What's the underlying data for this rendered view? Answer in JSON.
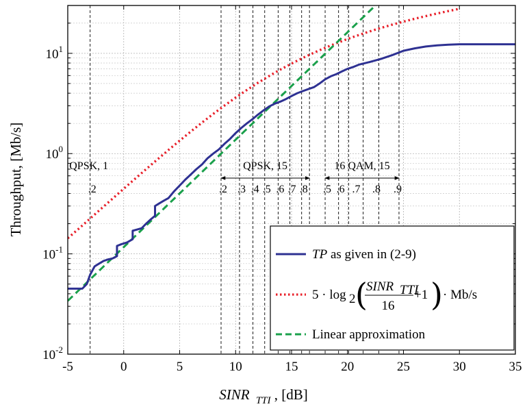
{
  "chart_data": {
    "type": "line",
    "xlabel": "SINR",
    "xlabel_sub": "TTI",
    "xlabel_unit": ", [dB]",
    "ylabel": "Throughput, [Mb/s]",
    "xlim": [
      -5,
      35
    ],
    "ylim": [
      0.01,
      30
    ],
    "y_scale": "log",
    "grid": true,
    "x_ticks": [
      -5,
      0,
      5,
      10,
      15,
      20,
      25,
      30,
      35
    ],
    "x_tick_labels": [
      "-5",
      "0",
      "5",
      "10",
      "15",
      "20",
      "25",
      "30",
      "35"
    ],
    "y_ticks": [
      {
        "value": 0.01,
        "base": "10",
        "exp": "-2"
      },
      {
        "value": 0.1,
        "base": "10",
        "exp": "-1"
      },
      {
        "value": 1,
        "base": "10",
        "exp": "0"
      },
      {
        "value": 10,
        "base": "10",
        "exp": "1"
      }
    ],
    "series": [
      {
        "name": "TP as given in  (2-9)",
        "name_italic": "TP",
        "name_rest": " as given in  (2-9)",
        "color": "#2e3192",
        "style": "solid",
        "x": [
          -5,
          -3.7,
          -3.3,
          -3.0,
          -2.6,
          -2.2,
          -1.8,
          -1.4,
          -1.0,
          -0.6,
          -0.6,
          -0.2,
          0.3,
          0.8,
          0.8,
          1.2,
          1.6,
          2.0,
          2.4,
          2.8,
          2.8,
          3.2,
          3.6,
          4.0,
          4.5,
          5.0,
          5.5,
          6.0,
          6.5,
          7.0,
          7.5,
          8.0,
          8.5,
          9.0,
          9.5,
          10.0,
          10.5,
          11.0,
          11.5,
          12.0,
          12.5,
          13.0,
          13.5,
          14.0,
          14.5,
          15.0,
          15.5,
          16.0,
          16.5,
          17.0,
          17.5,
          18.0,
          18.5,
          19.0,
          19.5,
          20.0,
          20.5,
          21.0,
          22.0,
          23.0,
          24.0,
          25.0,
          26.0,
          27.0,
          28.0,
          29.0,
          30.0,
          32.0,
          35.0
        ],
        "y": [
          0.045,
          0.045,
          0.05,
          0.062,
          0.075,
          0.08,
          0.085,
          0.088,
          0.09,
          0.095,
          0.12,
          0.125,
          0.13,
          0.14,
          0.17,
          0.175,
          0.18,
          0.2,
          0.22,
          0.24,
          0.3,
          0.32,
          0.34,
          0.36,
          0.42,
          0.48,
          0.55,
          0.62,
          0.7,
          0.78,
          0.9,
          1.0,
          1.1,
          1.25,
          1.4,
          1.6,
          1.8,
          2.0,
          2.2,
          2.45,
          2.7,
          2.95,
          3.15,
          3.3,
          3.5,
          3.75,
          4.0,
          4.2,
          4.4,
          4.6,
          5.0,
          5.5,
          5.9,
          6.2,
          6.6,
          7.0,
          7.3,
          7.7,
          8.2,
          8.8,
          9.6,
          10.6,
          11.2,
          11.7,
          12.0,
          12.2,
          12.3,
          12.3,
          12.3
        ]
      },
      {
        "name": "5·log2(SINR_TTI/16+1)·Mb/s",
        "color": "#e8202a",
        "style": "dotted",
        "x": [
          -5,
          -4,
          -3,
          -2,
          -1,
          0,
          1,
          2,
          3,
          4,
          5,
          6,
          7,
          8,
          9,
          10,
          11,
          12,
          13,
          14,
          15,
          16,
          17,
          18,
          19,
          20,
          21,
          22,
          23,
          24,
          25,
          26,
          27,
          28,
          29,
          30
        ],
        "y": [
          0.143,
          0.179,
          0.225,
          0.283,
          0.355,
          0.446,
          0.559,
          0.699,
          0.872,
          1.086,
          1.346,
          1.661,
          2.039,
          2.486,
          3.01,
          3.615,
          4.306,
          5.083,
          5.944,
          6.886,
          7.904,
          8.993,
          10.14,
          11.35,
          12.6,
          13.89,
          15.21,
          16.56,
          17.93,
          19.31,
          20.7,
          22.11,
          23.52,
          24.94,
          26.37,
          27.8
        ]
      },
      {
        "name": "Linear approximation",
        "color": "#1aa04b",
        "style": "dashed",
        "x": [
          -5,
          23
        ],
        "y": [
          0.034,
          34
        ]
      }
    ],
    "vertical_lines_db": [
      -3.0,
      8.7,
      10.35,
      11.55,
      12.6,
      13.8,
      14.85,
      15.9,
      16.6,
      18.0,
      19.2,
      20.1,
      21.4,
      22.8,
      24.6
    ],
    "annotations": [
      {
        "text": "QPSK, 1",
        "x": -3.0
      },
      {
        "text": ".2",
        "x": -3.0
      },
      {
        "text": "QPSK, 15",
        "x": 12.65
      },
      {
        "text": "16 QAM, 15",
        "x": 21.3
      },
      {
        "text": ".2",
        "x": 8.7
      },
      {
        "text": ".3",
        "x": 10.35
      },
      {
        "text": ".4",
        "x": 11.55
      },
      {
        "text": ".5",
        "x": 12.6
      },
      {
        "text": ".6",
        "x": 13.8
      },
      {
        "text": ".7",
        "x": 14.85
      },
      {
        "text": ".8",
        "x": 15.9
      },
      {
        "text": ".5",
        "x": 18.0
      },
      {
        "text": ".6",
        "x": 19.2
      },
      {
        "text": ".7",
        "x": 20.6
      },
      {
        "text": ".8",
        "x": 22.4
      },
      {
        "text": ".9",
        "x": 24.3
      }
    ],
    "arrows": [
      {
        "from": 8.7,
        "to": 16.6,
        "y": 0.57
      },
      {
        "from": 18.0,
        "to": 24.6,
        "y": 0.57
      }
    ],
    "legend": {
      "position": "bottom-right",
      "formula": {
        "coef": "5 · log",
        "sub2": "2",
        "num": "SINR",
        "num_sub": "TTI",
        "den": "16",
        "tail": "+1",
        "unit": "· Mb/s"
      }
    }
  }
}
